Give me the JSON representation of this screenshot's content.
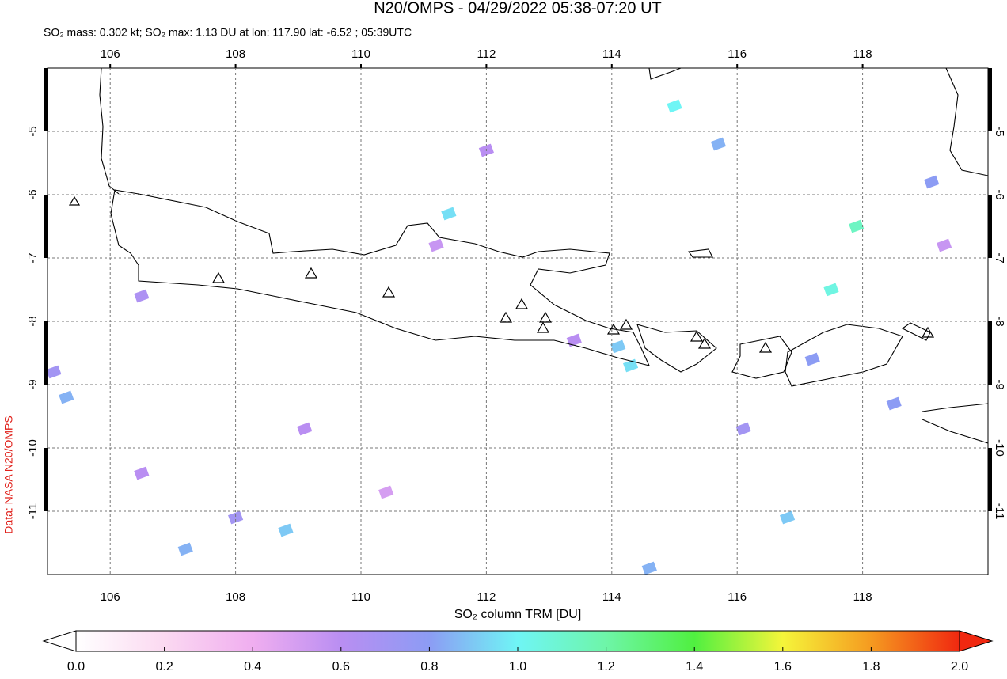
{
  "chart_data": {
    "type": "map",
    "title": "N20/OMPS - 04/29/2022 05:38-07:20 UT",
    "subtitle": "SO₂ mass: 0.302 kt; SO₂ max: 1.13 DU at lon: 117.90 lat: -6.52 ; 05:39UTC",
    "source": "Data: NASA N20/OMPS",
    "xlim": [
      105,
      120
    ],
    "ylim": [
      -12,
      -4
    ],
    "xticks": [
      106,
      108,
      110,
      112,
      114,
      116,
      118
    ],
    "yticks": [
      -11,
      -10,
      -9,
      -8,
      -7,
      -6,
      -5
    ],
    "grid": true,
    "pixels": {
      "lon": [
        111.4,
        114.1,
        114.3,
        108.8,
        105.3,
        119.1,
        115.0,
        117.5,
        113.4,
        109.1,
        106.5,
        108.0,
        115.7,
        117.9,
        106.5,
        118.5,
        111.2,
        110.4,
        116.8,
        114.6,
        119.3,
        112.0,
        107.2,
        116.1,
        117.2,
        105.1
      ],
      "lat": [
        -6.3,
        -8.4,
        -8.7,
        -11.3,
        -9.2,
        -5.8,
        -4.6,
        -7.5,
        -8.3,
        -9.7,
        -10.4,
        -11.1,
        -5.2,
        -6.5,
        -7.6,
        -9.3,
        -6.8,
        -10.7,
        -11.1,
        -11.9,
        -6.8,
        -5.3,
        -11.6,
        -9.7,
        -8.6,
        -8.8
      ],
      "values": [
        0.95,
        0.9,
        0.95,
        0.9,
        0.85,
        0.8,
        1.0,
        1.05,
        0.6,
        0.6,
        0.6,
        0.7,
        0.85,
        1.13,
        0.65,
        0.8,
        0.55,
        0.5,
        0.9,
        0.85,
        0.55,
        0.6,
        0.85,
        0.7,
        0.8,
        0.7
      ]
    },
    "colorbar": {
      "label": "SO₂ column TRM [DU]",
      "lim": [
        0,
        2
      ],
      "ticks": [
        {
          "value": 0,
          "label": "0.0"
        },
        {
          "value": 0.2,
          "label": "0.2"
        },
        {
          "value": 0.4,
          "label": "0.4"
        },
        {
          "value": 0.6,
          "label": "0.6"
        },
        {
          "value": 0.8,
          "label": "0.8"
        },
        {
          "value": 1,
          "label": "1.0"
        },
        {
          "value": 1.2,
          "label": "1.2"
        },
        {
          "value": 1.4,
          "label": "1.4"
        },
        {
          "value": 1.6,
          "label": "1.6"
        },
        {
          "value": 1.8,
          "label": "1.8"
        },
        {
          "value": 2,
          "label": "2.0"
        }
      ]
    }
  }
}
